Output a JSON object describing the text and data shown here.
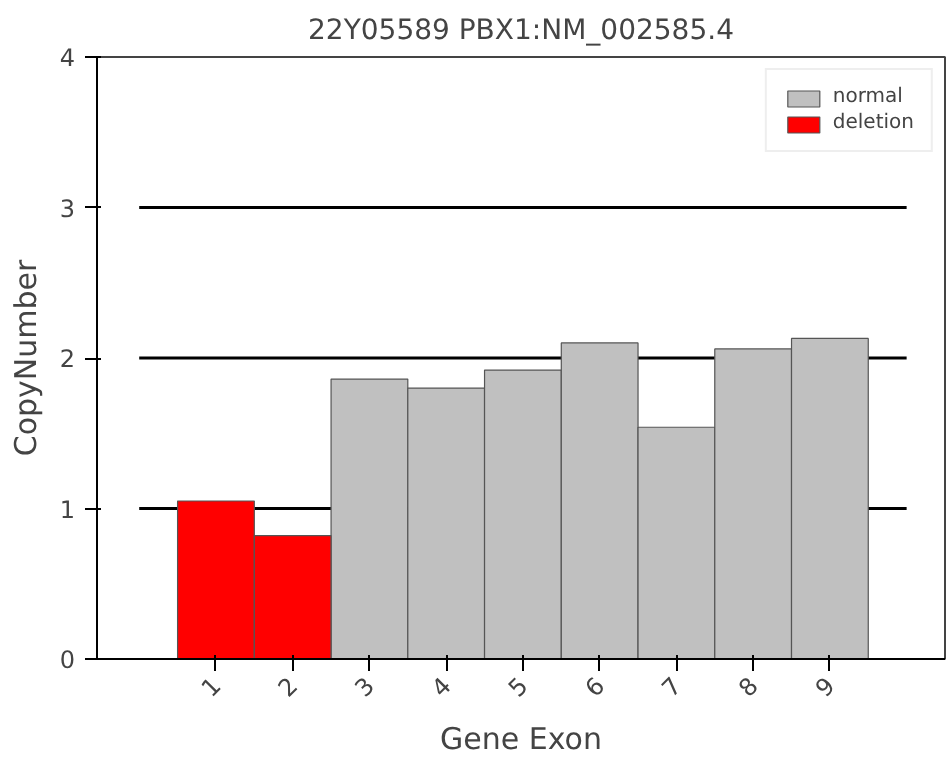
{
  "chart_data": {
    "type": "bar",
    "title": "22Y05589 PBX1:NM_002585.4",
    "xlabel": "Gene Exon",
    "ylabel": "CopyNumber",
    "categories": [
      "1",
      "2",
      "3",
      "4",
      "5",
      "6",
      "7",
      "8",
      "9"
    ],
    "series": [
      {
        "name": "normal",
        "color": "#c0c0c0",
        "values": [
          null,
          null,
          1.86,
          1.8,
          1.92,
          2.1,
          1.54,
          2.06,
          2.13
        ]
      },
      {
        "name": "deletion",
        "color": "#ff0000",
        "values": [
          1.05,
          0.82,
          null,
          null,
          null,
          null,
          null,
          null,
          null
        ]
      }
    ],
    "ylim": [
      0,
      4
    ],
    "yticks": [
      0,
      1,
      2,
      3,
      4
    ],
    "ref_lines": [
      {
        "axis": "y",
        "value": 1,
        "color": "#000000"
      },
      {
        "axis": "y",
        "value": 2,
        "color": "#000000"
      },
      {
        "axis": "y",
        "value": 3,
        "color": "#000000"
      }
    ],
    "grid": false,
    "legend": "top right"
  }
}
